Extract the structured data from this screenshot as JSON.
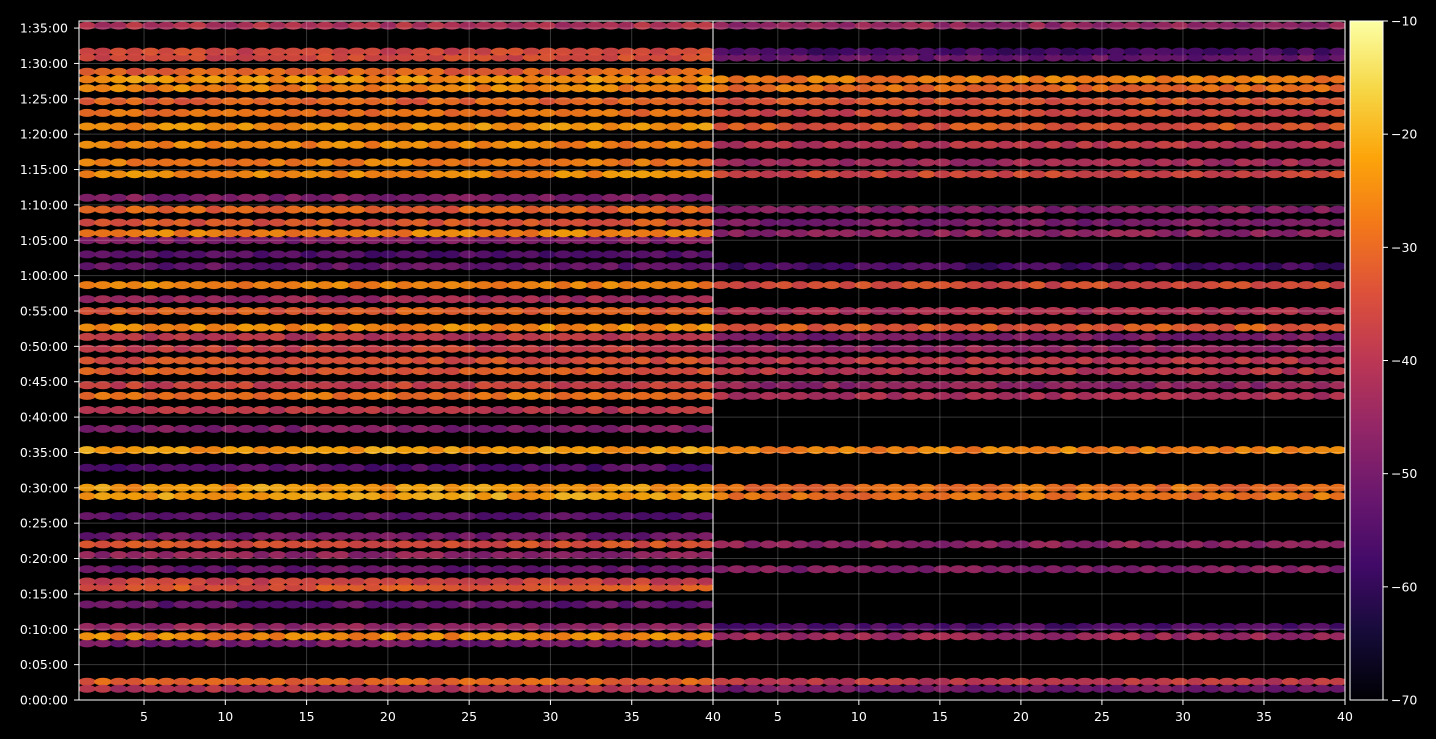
{
  "chart_data": {
    "type": "heatmap",
    "title": "",
    "xlabel": "",
    "ylabel": "",
    "panels": [
      {
        "name": "",
        "xlim": [
          1,
          40
        ],
        "xticks": [
          "5",
          "10",
          "15",
          "20",
          "25",
          "30",
          "35",
          "40"
        ]
      },
      {
        "name": "",
        "xlim": [
          1,
          40
        ],
        "xticks": [
          "5",
          "10",
          "15",
          "20",
          "25",
          "30",
          "35",
          "40"
        ]
      }
    ],
    "y_range_seconds": [
      0,
      5760
    ],
    "yticks": [
      "0:00:00",
      "0:05:00",
      "0:10:00",
      "0:15:00",
      "0:20:00",
      "0:25:00",
      "0:30:00",
      "0:35:00",
      "0:40:00",
      "0:45:00",
      "0:50:00",
      "0:55:00",
      "1:00:00",
      "1:05:00",
      "1:10:00",
      "1:15:00",
      "1:20:00",
      "1:25:00",
      "1:30:00",
      "1:35:00"
    ],
    "colorbar": {
      "range": [
        -70,
        -10
      ],
      "ticks": [
        "−10",
        "−20",
        "−30",
        "−40",
        "−50",
        "−60",
        "−70"
      ],
      "colormap": "inferno"
    },
    "grid": true,
    "background": "#000000",
    "bands_left": [
      {
        "t": 155,
        "v": -31
      },
      {
        "t": 95,
        "v": -41
      },
      {
        "t": 480,
        "v": -50
      },
      {
        "t": 540,
        "v": -25
      },
      {
        "t": 620,
        "v": -46
      },
      {
        "t": 810,
        "v": -53
      },
      {
        "t": 955,
        "v": -33
      },
      {
        "t": 1005,
        "v": -37
      },
      {
        "t": 1110,
        "v": -52
      },
      {
        "t": 1230,
        "v": -46
      },
      {
        "t": 1320,
        "v": -34
      },
      {
        "t": 1390,
        "v": -51
      },
      {
        "t": 1560,
        "v": -54
      },
      {
        "t": 1730,
        "v": -22
      },
      {
        "t": 1800,
        "v": -23
      },
      {
        "t": 1970,
        "v": -55
      },
      {
        "t": 2120,
        "v": -23
      },
      {
        "t": 2300,
        "v": -48
      },
      {
        "t": 2460,
        "v": -40
      },
      {
        "t": 2580,
        "v": -28
      },
      {
        "t": 2670,
        "v": -37
      },
      {
        "t": 2790,
        "v": -32
      },
      {
        "t": 2880,
        "v": -34
      },
      {
        "t": 2980,
        "v": -37
      },
      {
        "t": 3080,
        "v": -40
      },
      {
        "t": 3160,
        "v": -25
      },
      {
        "t": 3300,
        "v": -32
      },
      {
        "t": 3400,
        "v": -44
      },
      {
        "t": 3520,
        "v": -26
      },
      {
        "t": 3680,
        "v": -53
      },
      {
        "t": 3780,
        "v": -55
      },
      {
        "t": 3900,
        "v": -49
      },
      {
        "t": 3960,
        "v": -26
      },
      {
        "t": 4050,
        "v": -33
      },
      {
        "t": 4160,
        "v": -31
      },
      {
        "t": 4260,
        "v": -48
      },
      {
        "t": 4460,
        "v": -25
      },
      {
        "t": 4560,
        "v": -27
      },
      {
        "t": 4710,
        "v": -26
      },
      {
        "t": 4865,
        "v": -24
      },
      {
        "t": 4980,
        "v": -29
      },
      {
        "t": 5080,
        "v": -31
      },
      {
        "t": 5190,
        "v": -26
      },
      {
        "t": 5265,
        "v": -24
      },
      {
        "t": 5330,
        "v": -31
      },
      {
        "t": 5450,
        "v": -35
      },
      {
        "t": 5500,
        "v": -36
      },
      {
        "t": 5720,
        "v": -41
      }
    ],
    "bands_right": [
      {
        "t": 155,
        "v": -39
      },
      {
        "t": 95,
        "v": -50
      },
      {
        "t": 540,
        "v": -44
      },
      {
        "t": 620,
        "v": -56
      },
      {
        "t": 1110,
        "v": -48
      },
      {
        "t": 1320,
        "v": -46
      },
      {
        "t": 1730,
        "v": -28
      },
      {
        "t": 1800,
        "v": -29
      },
      {
        "t": 2120,
        "v": -26
      },
      {
        "t": 2580,
        "v": -42
      },
      {
        "t": 2670,
        "v": -46
      },
      {
        "t": 2790,
        "v": -40
      },
      {
        "t": 2880,
        "v": -40
      },
      {
        "t": 2980,
        "v": -45
      },
      {
        "t": 3080,
        "v": -49
      },
      {
        "t": 3160,
        "v": -32
      },
      {
        "t": 3300,
        "v": -41
      },
      {
        "t": 3520,
        "v": -35
      },
      {
        "t": 3680,
        "v": -57
      },
      {
        "t": 3960,
        "v": -46
      },
      {
        "t": 4050,
        "v": -49
      },
      {
        "t": 4160,
        "v": -48
      },
      {
        "t": 4460,
        "v": -36
      },
      {
        "t": 4560,
        "v": -43
      },
      {
        "t": 4710,
        "v": -40
      },
      {
        "t": 4865,
        "v": -33
      },
      {
        "t": 4980,
        "v": -36
      },
      {
        "t": 5080,
        "v": -33
      },
      {
        "t": 5190,
        "v": -29
      },
      {
        "t": 5265,
        "v": -27
      },
      {
        "t": 5450,
        "v": -52
      },
      {
        "t": 5500,
        "v": -57
      },
      {
        "t": 5720,
        "v": -45
      }
    ]
  }
}
